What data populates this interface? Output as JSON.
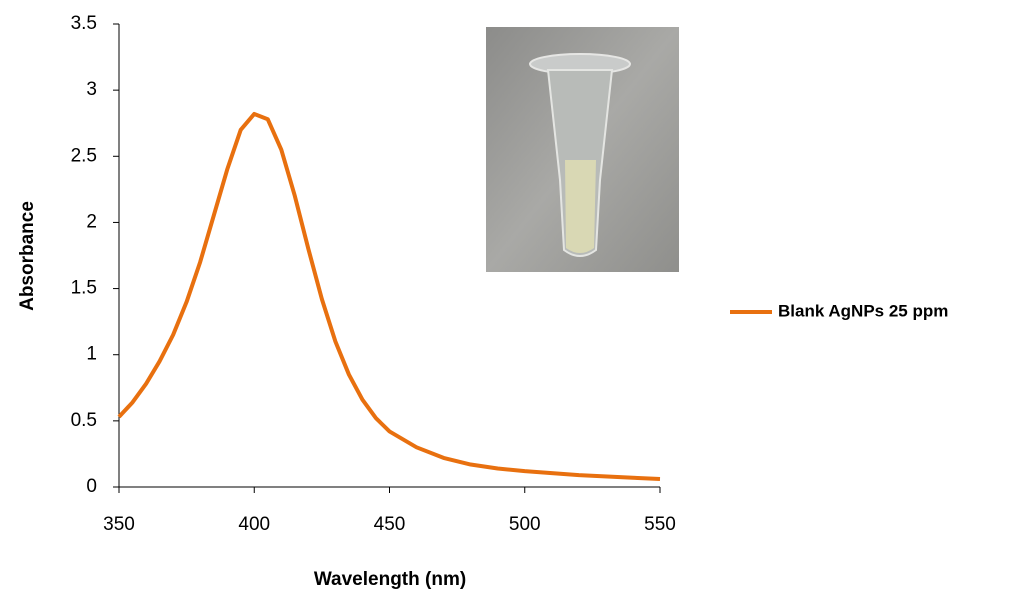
{
  "chart_data": {
    "type": "line",
    "x_label": "Wavelength (nm)",
    "y_label": "Absorbance",
    "x": [
      350,
      355,
      360,
      365,
      370,
      375,
      380,
      385,
      390,
      395,
      400,
      405,
      410,
      415,
      420,
      425,
      430,
      435,
      440,
      445,
      450,
      460,
      470,
      480,
      490,
      500,
      520,
      540,
      550
    ],
    "series": [
      {
        "name": "Blank AgNPs 25 ppm",
        "color": "#e8700f",
        "values": [
          0.53,
          0.64,
          0.78,
          0.95,
          1.15,
          1.4,
          1.7,
          2.05,
          2.4,
          2.7,
          2.82,
          2.78,
          2.55,
          2.2,
          1.8,
          1.42,
          1.1,
          0.85,
          0.66,
          0.52,
          0.42,
          0.3,
          0.22,
          0.17,
          0.14,
          0.12,
          0.09,
          0.07,
          0.06
        ]
      }
    ],
    "xlim": [
      350,
      550
    ],
    "xticks": [
      350,
      400,
      450,
      500,
      550
    ],
    "ylim": [
      0,
      3.5
    ],
    "yticks": [
      0,
      0.5,
      1,
      1.5,
      2,
      2.5,
      3,
      3.5
    ],
    "grid": false,
    "legend": "right"
  }
}
